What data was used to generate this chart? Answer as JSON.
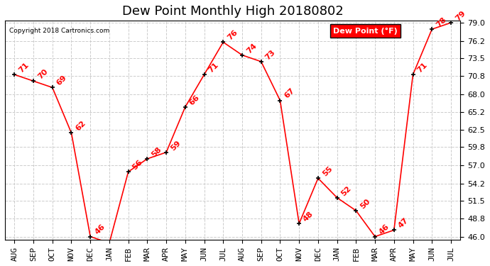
{
  "title": "Dew Point Monthly High 20180802",
  "copyright": "Copyright 2018 Cartronics.com",
  "legend_label": "Dew Point (°F)",
  "x_labels": [
    "AUG",
    "SEP",
    "OCT",
    "NOV",
    "DEC",
    "JAN",
    "FEB",
    "MAR",
    "APR",
    "MAY",
    "JUN",
    "JUL",
    "AUG",
    "SEP",
    "OCT",
    "NOV",
    "DEC",
    "JAN",
    "FEB",
    "MAR",
    "APR",
    "MAY",
    "JUN",
    "JUL"
  ],
  "y_values": [
    71,
    70,
    69,
    62,
    46,
    45,
    56,
    58,
    59,
    66,
    71,
    76,
    74,
    73,
    67,
    48,
    55,
    52,
    50,
    46,
    47,
    71,
    78,
    79
  ],
  "ylim_min": 46.0,
  "ylim_max": 79.0,
  "y_ticks": [
    46.0,
    48.8,
    51.5,
    54.2,
    57.0,
    59.8,
    62.5,
    65.2,
    68.0,
    70.8,
    73.5,
    76.2,
    79.0
  ],
  "line_color": "red",
  "marker_color": "black",
  "grid_color": "#cccccc",
  "background_color": "white",
  "title_fontsize": 13,
  "label_fontsize": 8,
  "annotation_fontsize": 8,
  "legend_bg": "red",
  "legend_text_color": "white"
}
